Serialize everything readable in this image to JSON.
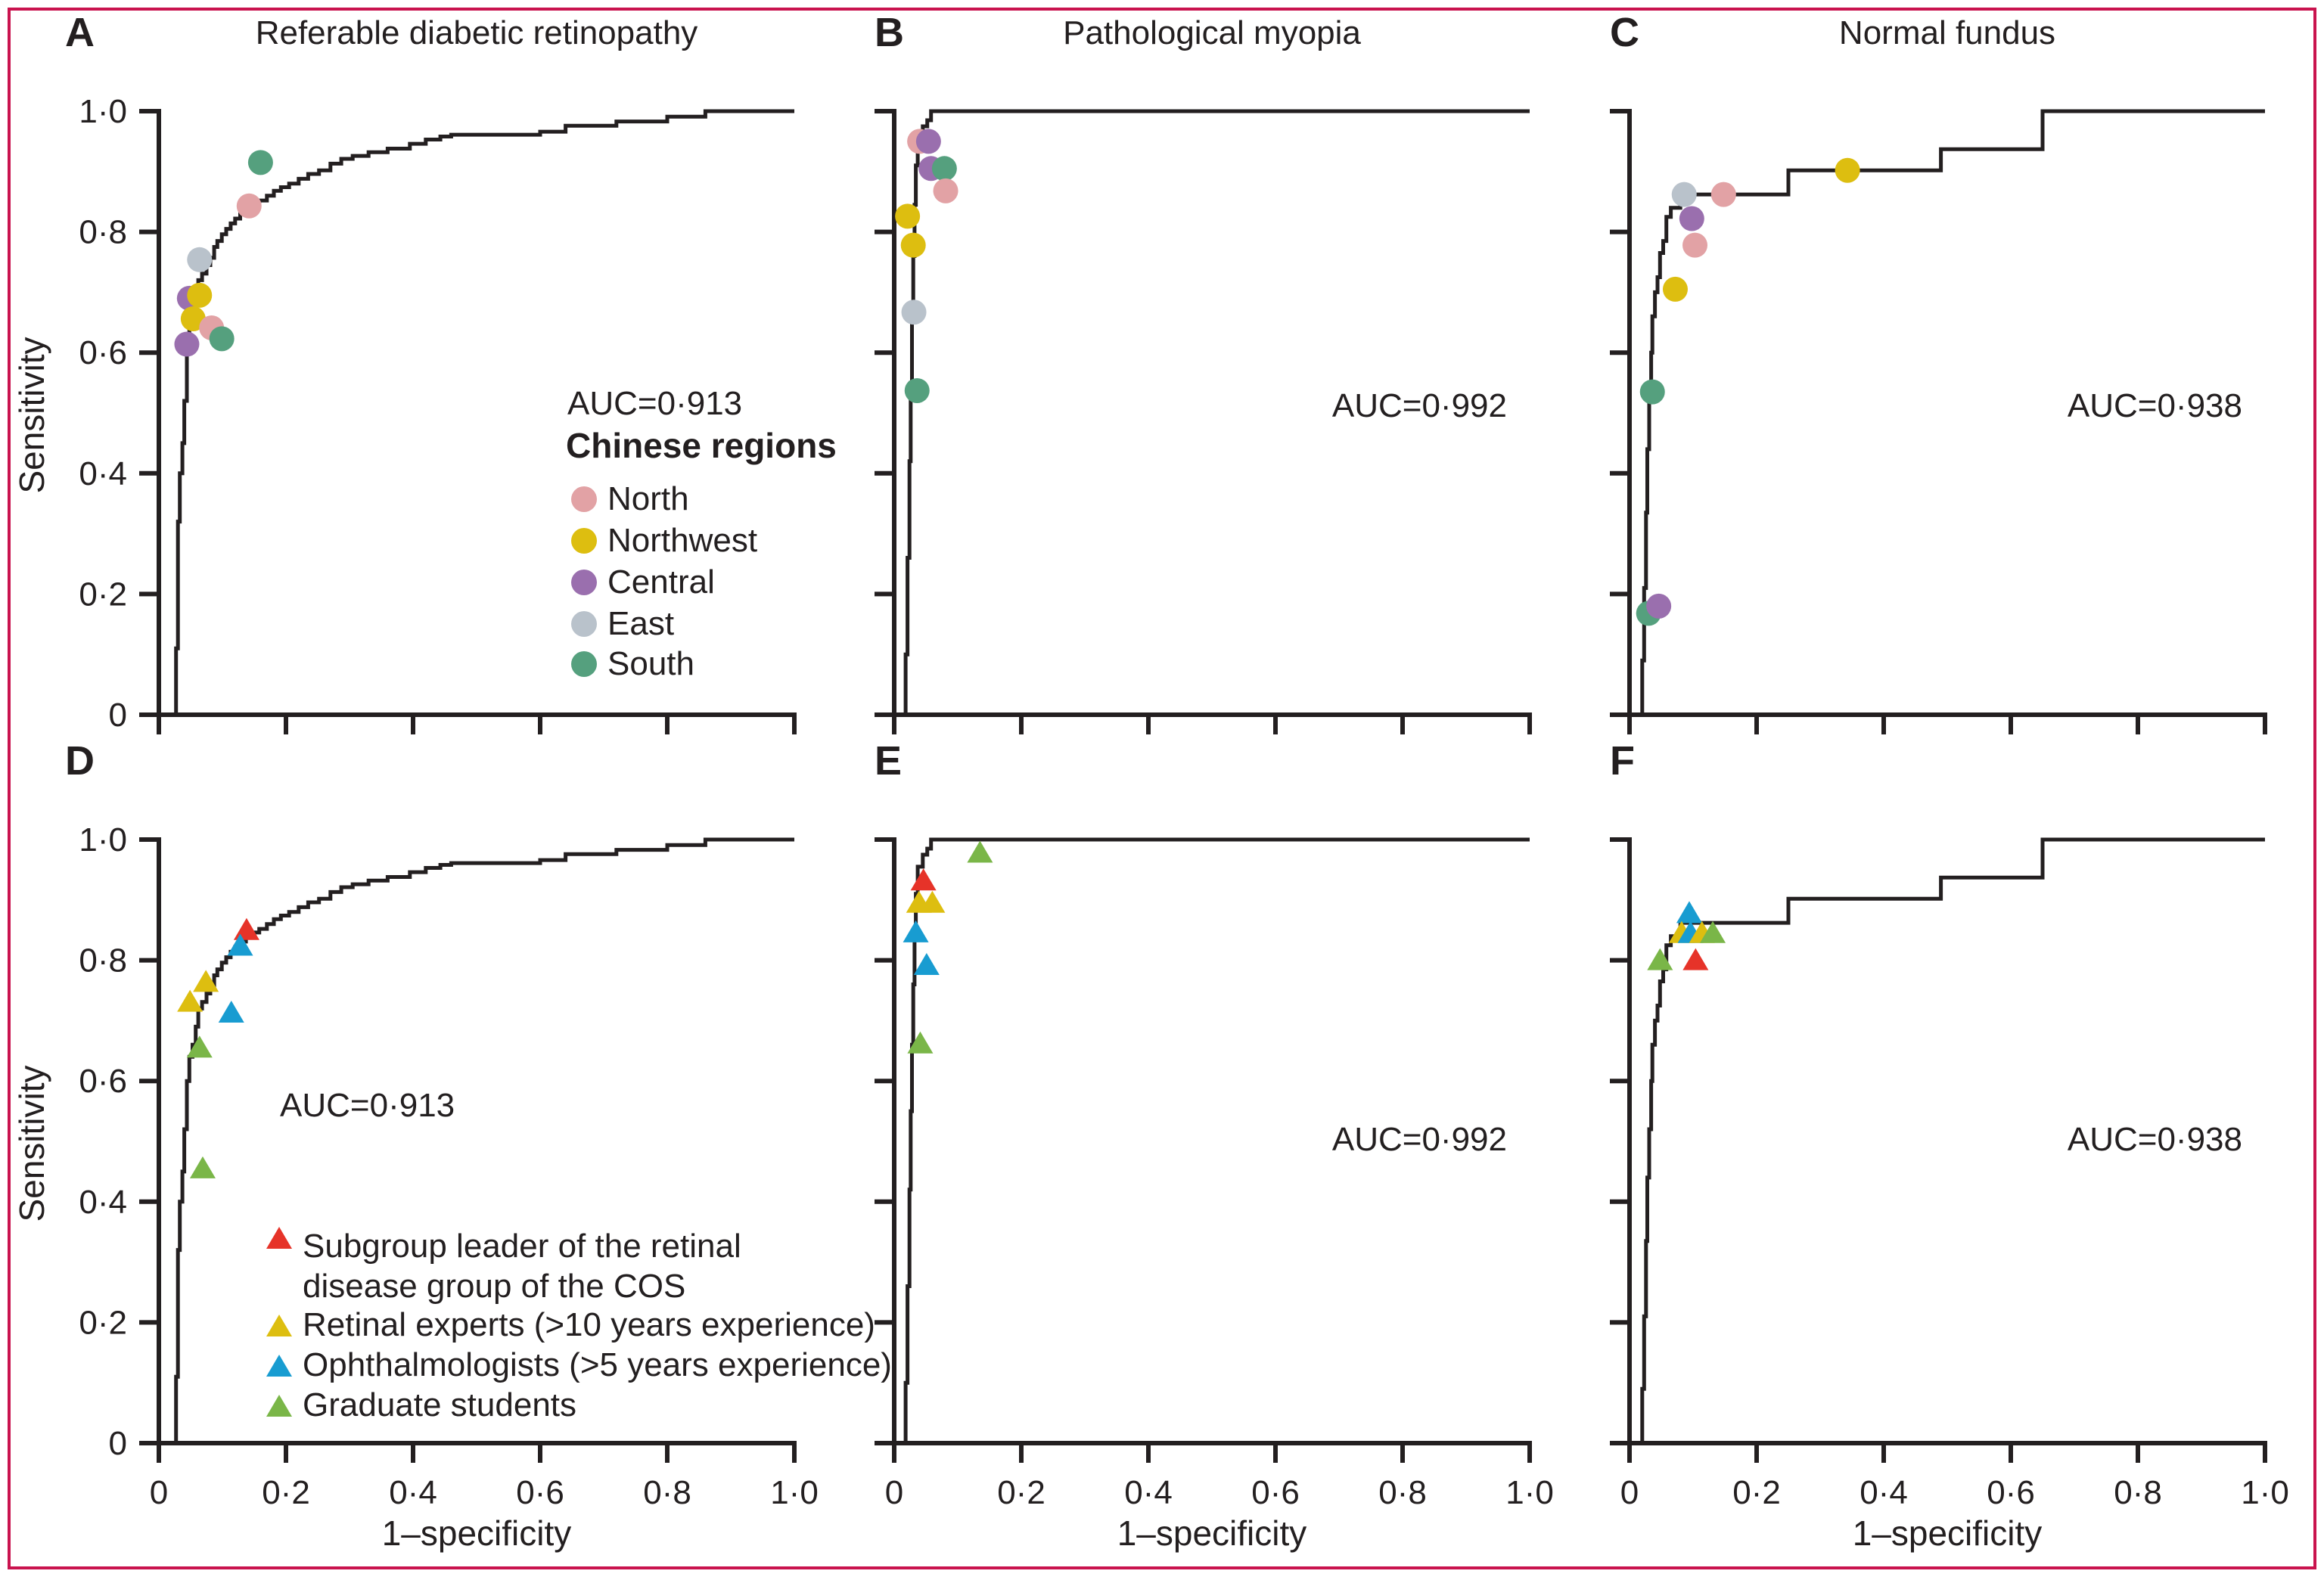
{
  "figure": {
    "border_color": "#c9134e",
    "text_color": "#231f20",
    "curve_color": "#231f20",
    "background": "#ffffff"
  },
  "axis": {
    "x_label": "1–specificity",
    "y_label": "Sensitivity",
    "x_ticks": [
      "0",
      "0·2",
      "0·4",
      "0·6",
      "0·8",
      "1·0"
    ],
    "y_ticks": [
      "0",
      "0·2",
      "0·4",
      "0·6",
      "0·8",
      "1·0"
    ]
  },
  "colors": {
    "north": "#e2a2a5",
    "northwest": "#ddbe10",
    "central": "#9a6fae",
    "east": "#b9c2cb",
    "south": "#55a07e",
    "leader": "#e63329",
    "expert": "#ddbe10",
    "ophthalmologist": "#189cd1",
    "student": "#7ab648"
  },
  "legend_regions": {
    "heading": "Chinese regions",
    "items": [
      {
        "key": "north",
        "label": "North"
      },
      {
        "key": "northwest",
        "label": "Northwest"
      },
      {
        "key": "central",
        "label": "Central"
      },
      {
        "key": "east",
        "label": "East"
      },
      {
        "key": "south",
        "label": "South"
      }
    ]
  },
  "legend_graders": {
    "items": [
      {
        "key": "leader",
        "line1": "Subgroup leader of the retinal",
        "line2": "disease group of the COS"
      },
      {
        "key": "expert",
        "line1": "Retinal experts (>10 years experience)",
        "line2": ""
      },
      {
        "key": "ophthalmologist",
        "line1": "Ophthalmologists (>5 years experience)",
        "line2": ""
      },
      {
        "key": "student",
        "line1": "Graduate students",
        "line2": ""
      }
    ]
  },
  "chart_data": {
    "type": "line",
    "note": "Six ROC panels; x = 1-specificity, y = sensitivity, both 0 to 1.0",
    "xlim": [
      0,
      1
    ],
    "ylim": [
      0,
      1
    ],
    "curves": {
      "dr": [
        [
          0.027,
          0
        ],
        [
          0.027,
          0.11
        ],
        [
          0.03,
          0.11
        ],
        [
          0.03,
          0.32
        ],
        [
          0.033,
          0.32
        ],
        [
          0.033,
          0.4
        ],
        [
          0.037,
          0.4
        ],
        [
          0.037,
          0.45
        ],
        [
          0.04,
          0.45
        ],
        [
          0.04,
          0.52
        ],
        [
          0.044,
          0.52
        ],
        [
          0.044,
          0.6
        ],
        [
          0.048,
          0.6
        ],
        [
          0.048,
          0.64
        ],
        [
          0.053,
          0.64
        ],
        [
          0.053,
          0.66
        ],
        [
          0.058,
          0.66
        ],
        [
          0.058,
          0.69
        ],
        [
          0.062,
          0.69
        ],
        [
          0.062,
          0.72
        ],
        [
          0.068,
          0.72
        ],
        [
          0.068,
          0.731
        ],
        [
          0.075,
          0.731
        ],
        [
          0.075,
          0.745
        ],
        [
          0.081,
          0.745
        ],
        [
          0.081,
          0.757
        ],
        [
          0.087,
          0.757
        ],
        [
          0.087,
          0.775
        ],
        [
          0.092,
          0.775
        ],
        [
          0.092,
          0.785
        ],
        [
          0.099,
          0.785
        ],
        [
          0.099,
          0.796
        ],
        [
          0.106,
          0.796
        ],
        [
          0.106,
          0.805
        ],
        [
          0.113,
          0.805
        ],
        [
          0.113,
          0.814
        ],
        [
          0.12,
          0.814
        ],
        [
          0.12,
          0.822
        ],
        [
          0.128,
          0.822
        ],
        [
          0.128,
          0.831
        ],
        [
          0.137,
          0.831
        ],
        [
          0.137,
          0.839
        ],
        [
          0.148,
          0.839
        ],
        [
          0.148,
          0.846
        ],
        [
          0.158,
          0.846
        ],
        [
          0.158,
          0.852
        ],
        [
          0.17,
          0.852
        ],
        [
          0.17,
          0.86
        ],
        [
          0.181,
          0.86
        ],
        [
          0.181,
          0.868
        ],
        [
          0.192,
          0.868
        ],
        [
          0.192,
          0.874
        ],
        [
          0.205,
          0.874
        ],
        [
          0.205,
          0.88
        ],
        [
          0.22,
          0.88
        ],
        [
          0.22,
          0.888
        ],
        [
          0.235,
          0.888
        ],
        [
          0.235,
          0.896
        ],
        [
          0.252,
          0.896
        ],
        [
          0.252,
          0.902
        ],
        [
          0.27,
          0.902
        ],
        [
          0.27,
          0.913
        ],
        [
          0.287,
          0.913
        ],
        [
          0.287,
          0.921
        ],
        [
          0.305,
          0.921
        ],
        [
          0.305,
          0.926
        ],
        [
          0.33,
          0.926
        ],
        [
          0.33,
          0.932
        ],
        [
          0.36,
          0.932
        ],
        [
          0.36,
          0.938
        ],
        [
          0.395,
          0.938
        ],
        [
          0.395,
          0.946
        ],
        [
          0.42,
          0.946
        ],
        [
          0.42,
          0.953
        ],
        [
          0.443,
          0.953
        ],
        [
          0.443,
          0.958
        ],
        [
          0.46,
          0.958
        ],
        [
          0.46,
          0.961
        ],
        [
          0.6,
          0.961
        ],
        [
          0.6,
          0.966
        ],
        [
          0.64,
          0.966
        ],
        [
          0.64,
          0.976
        ],
        [
          0.72,
          0.976
        ],
        [
          0.72,
          0.983
        ],
        [
          0.8,
          0.983
        ],
        [
          0.8,
          0.991
        ],
        [
          0.86,
          0.991
        ],
        [
          0.86,
          1.0
        ],
        [
          1.0,
          1.0
        ]
      ],
      "pm": [
        [
          0.018,
          0
        ],
        [
          0.018,
          0.1
        ],
        [
          0.021,
          0.1
        ],
        [
          0.021,
          0.26
        ],
        [
          0.024,
          0.26
        ],
        [
          0.024,
          0.42
        ],
        [
          0.026,
          0.42
        ],
        [
          0.026,
          0.55
        ],
        [
          0.028,
          0.55
        ],
        [
          0.028,
          0.66
        ],
        [
          0.03,
          0.66
        ],
        [
          0.03,
          0.76
        ],
        [
          0.032,
          0.76
        ],
        [
          0.032,
          0.845
        ],
        [
          0.034,
          0.845
        ],
        [
          0.034,
          0.91
        ],
        [
          0.037,
          0.91
        ],
        [
          0.037,
          0.955
        ],
        [
          0.045,
          0.955
        ],
        [
          0.045,
          0.975
        ],
        [
          0.052,
          0.975
        ],
        [
          0.052,
          0.985
        ],
        [
          0.058,
          0.985
        ],
        [
          0.058,
          1.0
        ],
        [
          1.0,
          1.0
        ]
      ],
      "nf": [
        [
          0.02,
          0
        ],
        [
          0.02,
          0.09
        ],
        [
          0.023,
          0.09
        ],
        [
          0.023,
          0.21
        ],
        [
          0.026,
          0.21
        ],
        [
          0.026,
          0.335
        ],
        [
          0.028,
          0.335
        ],
        [
          0.028,
          0.44
        ],
        [
          0.031,
          0.44
        ],
        [
          0.031,
          0.52
        ],
        [
          0.034,
          0.52
        ],
        [
          0.034,
          0.6
        ],
        [
          0.036,
          0.6
        ],
        [
          0.036,
          0.66
        ],
        [
          0.04,
          0.66
        ],
        [
          0.04,
          0.7
        ],
        [
          0.044,
          0.7
        ],
        [
          0.044,
          0.725
        ],
        [
          0.048,
          0.725
        ],
        [
          0.048,
          0.765
        ],
        [
          0.053,
          0.765
        ],
        [
          0.053,
          0.785
        ],
        [
          0.058,
          0.785
        ],
        [
          0.058,
          0.825
        ],
        [
          0.065,
          0.825
        ],
        [
          0.065,
          0.84
        ],
        [
          0.08,
          0.84
        ],
        [
          0.08,
          0.862
        ],
        [
          0.25,
          0.862
        ],
        [
          0.25,
          0.902
        ],
        [
          0.49,
          0.902
        ],
        [
          0.49,
          0.937
        ],
        [
          0.65,
          0.937
        ],
        [
          0.65,
          1.0
        ],
        [
          1.0,
          1.0
        ]
      ]
    },
    "panels": [
      {
        "id": "A",
        "title": "Referable diabetic retinopathy",
        "auc": 0.913,
        "auc_label": "AUC=0·913",
        "curve": "dr",
        "marker_shape": "circle",
        "markers": [
          {
            "key": "south",
            "x": 0.16,
            "y": 0.915
          },
          {
            "key": "north",
            "x": 0.142,
            "y": 0.843
          },
          {
            "key": "east",
            "x": 0.064,
            "y": 0.754
          },
          {
            "key": "central",
            "x": 0.048,
            "y": 0.69
          },
          {
            "key": "northwest",
            "x": 0.064,
            "y": 0.695
          },
          {
            "key": "northwest",
            "x": 0.054,
            "y": 0.656
          },
          {
            "key": "north",
            "x": 0.083,
            "y": 0.641
          },
          {
            "key": "central",
            "x": 0.044,
            "y": 0.614
          },
          {
            "key": "south",
            "x": 0.099,
            "y": 0.623
          }
        ]
      },
      {
        "id": "B",
        "title": "Pathological myopia",
        "auc": 0.992,
        "auc_label": "AUC=0·992",
        "curve": "pm",
        "marker_shape": "circle",
        "markers": [
          {
            "key": "north",
            "x": 0.04,
            "y": 0.95
          },
          {
            "key": "central",
            "x": 0.054,
            "y": 0.95
          },
          {
            "key": "central",
            "x": 0.058,
            "y": 0.905
          },
          {
            "key": "south",
            "x": 0.079,
            "y": 0.905
          },
          {
            "key": "north",
            "x": 0.081,
            "y": 0.868
          },
          {
            "key": "northwest",
            "x": 0.021,
            "y": 0.826
          },
          {
            "key": "northwest",
            "x": 0.03,
            "y": 0.778
          },
          {
            "key": "east",
            "x": 0.031,
            "y": 0.667
          },
          {
            "key": "south",
            "x": 0.036,
            "y": 0.537
          }
        ]
      },
      {
        "id": "C",
        "title": "Normal fundus",
        "auc": 0.938,
        "auc_label": "AUC=0·938",
        "curve": "nf",
        "marker_shape": "circle",
        "markers": [
          {
            "key": "northwest",
            "x": 0.343,
            "y": 0.902
          },
          {
            "key": "east",
            "x": 0.086,
            "y": 0.862
          },
          {
            "key": "north",
            "x": 0.148,
            "y": 0.862
          },
          {
            "key": "central",
            "x": 0.098,
            "y": 0.822
          },
          {
            "key": "north",
            "x": 0.103,
            "y": 0.778
          },
          {
            "key": "northwest",
            "x": 0.072,
            "y": 0.705
          },
          {
            "key": "south",
            "x": 0.036,
            "y": 0.535
          },
          {
            "key": "south",
            "x": 0.03,
            "y": 0.168
          },
          {
            "key": "central",
            "x": 0.046,
            "y": 0.18
          }
        ]
      },
      {
        "id": "D",
        "title": "",
        "auc": 0.913,
        "auc_label": "AUC=0·913",
        "curve": "dr",
        "marker_shape": "triangle",
        "markers": [
          {
            "key": "leader",
            "x": 0.138,
            "y": 0.85
          },
          {
            "key": "ophthalmologist",
            "x": 0.128,
            "y": 0.824
          },
          {
            "key": "expert",
            "x": 0.074,
            "y": 0.764
          },
          {
            "key": "expert",
            "x": 0.049,
            "y": 0.731
          },
          {
            "key": "ophthalmologist",
            "x": 0.114,
            "y": 0.713
          },
          {
            "key": "student",
            "x": 0.064,
            "y": 0.655
          },
          {
            "key": "student",
            "x": 0.069,
            "y": 0.455
          }
        ]
      },
      {
        "id": "E",
        "title": "",
        "auc": 0.992,
        "auc_label": "AUC=0·992",
        "curve": "pm",
        "marker_shape": "triangle",
        "markers": [
          {
            "key": "student",
            "x": 0.135,
            "y": 0.978
          },
          {
            "key": "leader",
            "x": 0.046,
            "y": 0.932
          },
          {
            "key": "expert",
            "x": 0.039,
            "y": 0.895
          },
          {
            "key": "expert",
            "x": 0.06,
            "y": 0.895
          },
          {
            "key": "ophthalmologist",
            "x": 0.034,
            "y": 0.846
          },
          {
            "key": "ophthalmologist",
            "x": 0.051,
            "y": 0.792
          },
          {
            "key": "student",
            "x": 0.041,
            "y": 0.662
          }
        ]
      },
      {
        "id": "F",
        "title": "",
        "auc": 0.938,
        "auc_label": "AUC=0·938",
        "curve": "nf",
        "marker_shape": "triangle",
        "markers": [
          {
            "key": "ophthalmologist",
            "x": 0.094,
            "y": 0.878
          },
          {
            "key": "expert",
            "x": 0.082,
            "y": 0.845
          },
          {
            "key": "ophthalmologist",
            "x": 0.096,
            "y": 0.845
          },
          {
            "key": "expert",
            "x": 0.114,
            "y": 0.845
          },
          {
            "key": "student",
            "x": 0.131,
            "y": 0.845
          },
          {
            "key": "student",
            "x": 0.048,
            "y": 0.8
          },
          {
            "key": "leader",
            "x": 0.104,
            "y": 0.8
          }
        ]
      }
    ]
  }
}
